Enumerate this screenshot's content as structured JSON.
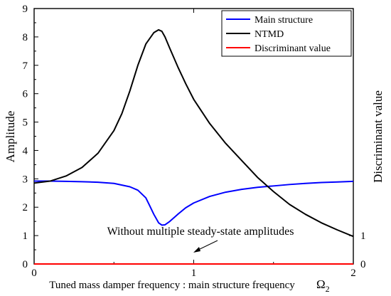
{
  "chart_data": {
    "type": "line",
    "title": "",
    "xlabel": "Tuned mass damper frequency : main structure frequency",
    "xlabel_symbol": "Ω",
    "xlabel_subscript": "2",
    "ylabel": "Amplitude",
    "y2label": "Discriminant value",
    "xlim": [
      0,
      2
    ],
    "ylim": [
      0,
      9
    ],
    "x_ticks": [
      "0",
      "1",
      "2"
    ],
    "y_ticks": [
      "0",
      "1",
      "2",
      "3",
      "4",
      "5",
      "6",
      "7",
      "8",
      "9"
    ],
    "y2_ticks": [
      {
        "value": 0,
        "label": "0"
      },
      {
        "value": 1,
        "label": "1"
      }
    ],
    "grid": false,
    "legend_position": "top-right",
    "annotation": {
      "text": "Without multiple steady-state amplitudes",
      "arrow_target": {
        "x": 1.0,
        "y": 0.0
      }
    },
    "series": [
      {
        "name": "Main structure",
        "color": "#0000ff",
        "x": [
          0,
          0.1,
          0.2,
          0.3,
          0.4,
          0.5,
          0.6,
          0.65,
          0.7,
          0.72,
          0.75,
          0.78,
          0.8,
          0.82,
          0.85,
          0.9,
          0.95,
          1.0,
          1.1,
          1.2,
          1.3,
          1.4,
          1.5,
          1.6,
          1.7,
          1.8,
          1.9,
          2.0
        ],
        "values": [
          2.92,
          2.92,
          2.91,
          2.9,
          2.88,
          2.84,
          2.72,
          2.6,
          2.33,
          2.1,
          1.75,
          1.45,
          1.37,
          1.38,
          1.5,
          1.75,
          1.98,
          2.15,
          2.38,
          2.53,
          2.63,
          2.7,
          2.75,
          2.8,
          2.84,
          2.87,
          2.89,
          2.91
        ]
      },
      {
        "name": "NTMD",
        "color": "#000000",
        "x": [
          0,
          0.1,
          0.2,
          0.3,
          0.4,
          0.5,
          0.55,
          0.6,
          0.65,
          0.7,
          0.75,
          0.78,
          0.8,
          0.82,
          0.85,
          0.9,
          0.95,
          1.0,
          1.1,
          1.2,
          1.3,
          1.4,
          1.5,
          1.6,
          1.7,
          1.8,
          1.9,
          2.0
        ],
        "values": [
          2.85,
          2.92,
          3.1,
          3.4,
          3.9,
          4.7,
          5.3,
          6.1,
          7.0,
          7.75,
          8.15,
          8.25,
          8.2,
          8.0,
          7.6,
          6.95,
          6.35,
          5.8,
          4.95,
          4.25,
          3.65,
          3.05,
          2.55,
          2.1,
          1.75,
          1.45,
          1.2,
          0.97
        ]
      },
      {
        "name": "Discriminant value",
        "color": "#ff0000",
        "x": [
          0,
          2
        ],
        "values": [
          0,
          0
        ]
      }
    ]
  }
}
